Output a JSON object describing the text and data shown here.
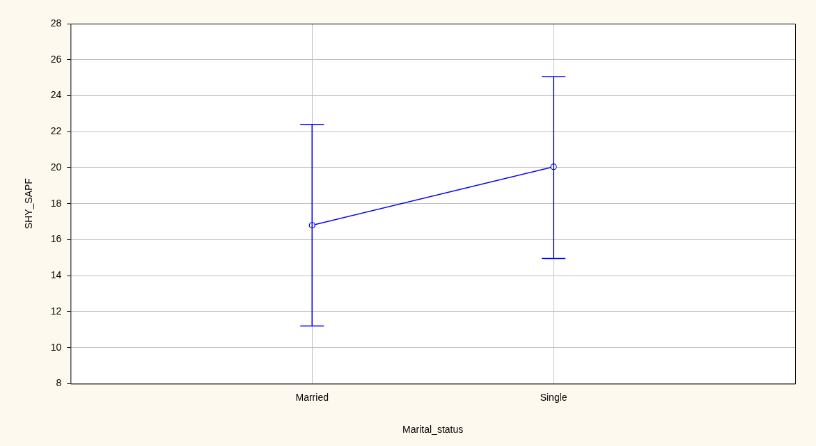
{
  "chart_data": {
    "type": "line",
    "xlabel": "Marital_status",
    "ylabel": "SHY_SAPF",
    "categories": [
      "Married",
      "Single"
    ],
    "values": [
      16.8,
      20.05
    ],
    "errors": [
      [
        11.2,
        22.4
      ],
      [
        14.95,
        25.05
      ]
    ],
    "color": "#0000ff",
    "marker": "circle",
    "line_style": "solid",
    "ylim": [
      8,
      28
    ],
    "yticks": [
      8,
      10,
      12,
      14,
      16,
      18,
      20,
      22,
      24,
      26,
      28
    ],
    "grid": true,
    "legend": false
  }
}
